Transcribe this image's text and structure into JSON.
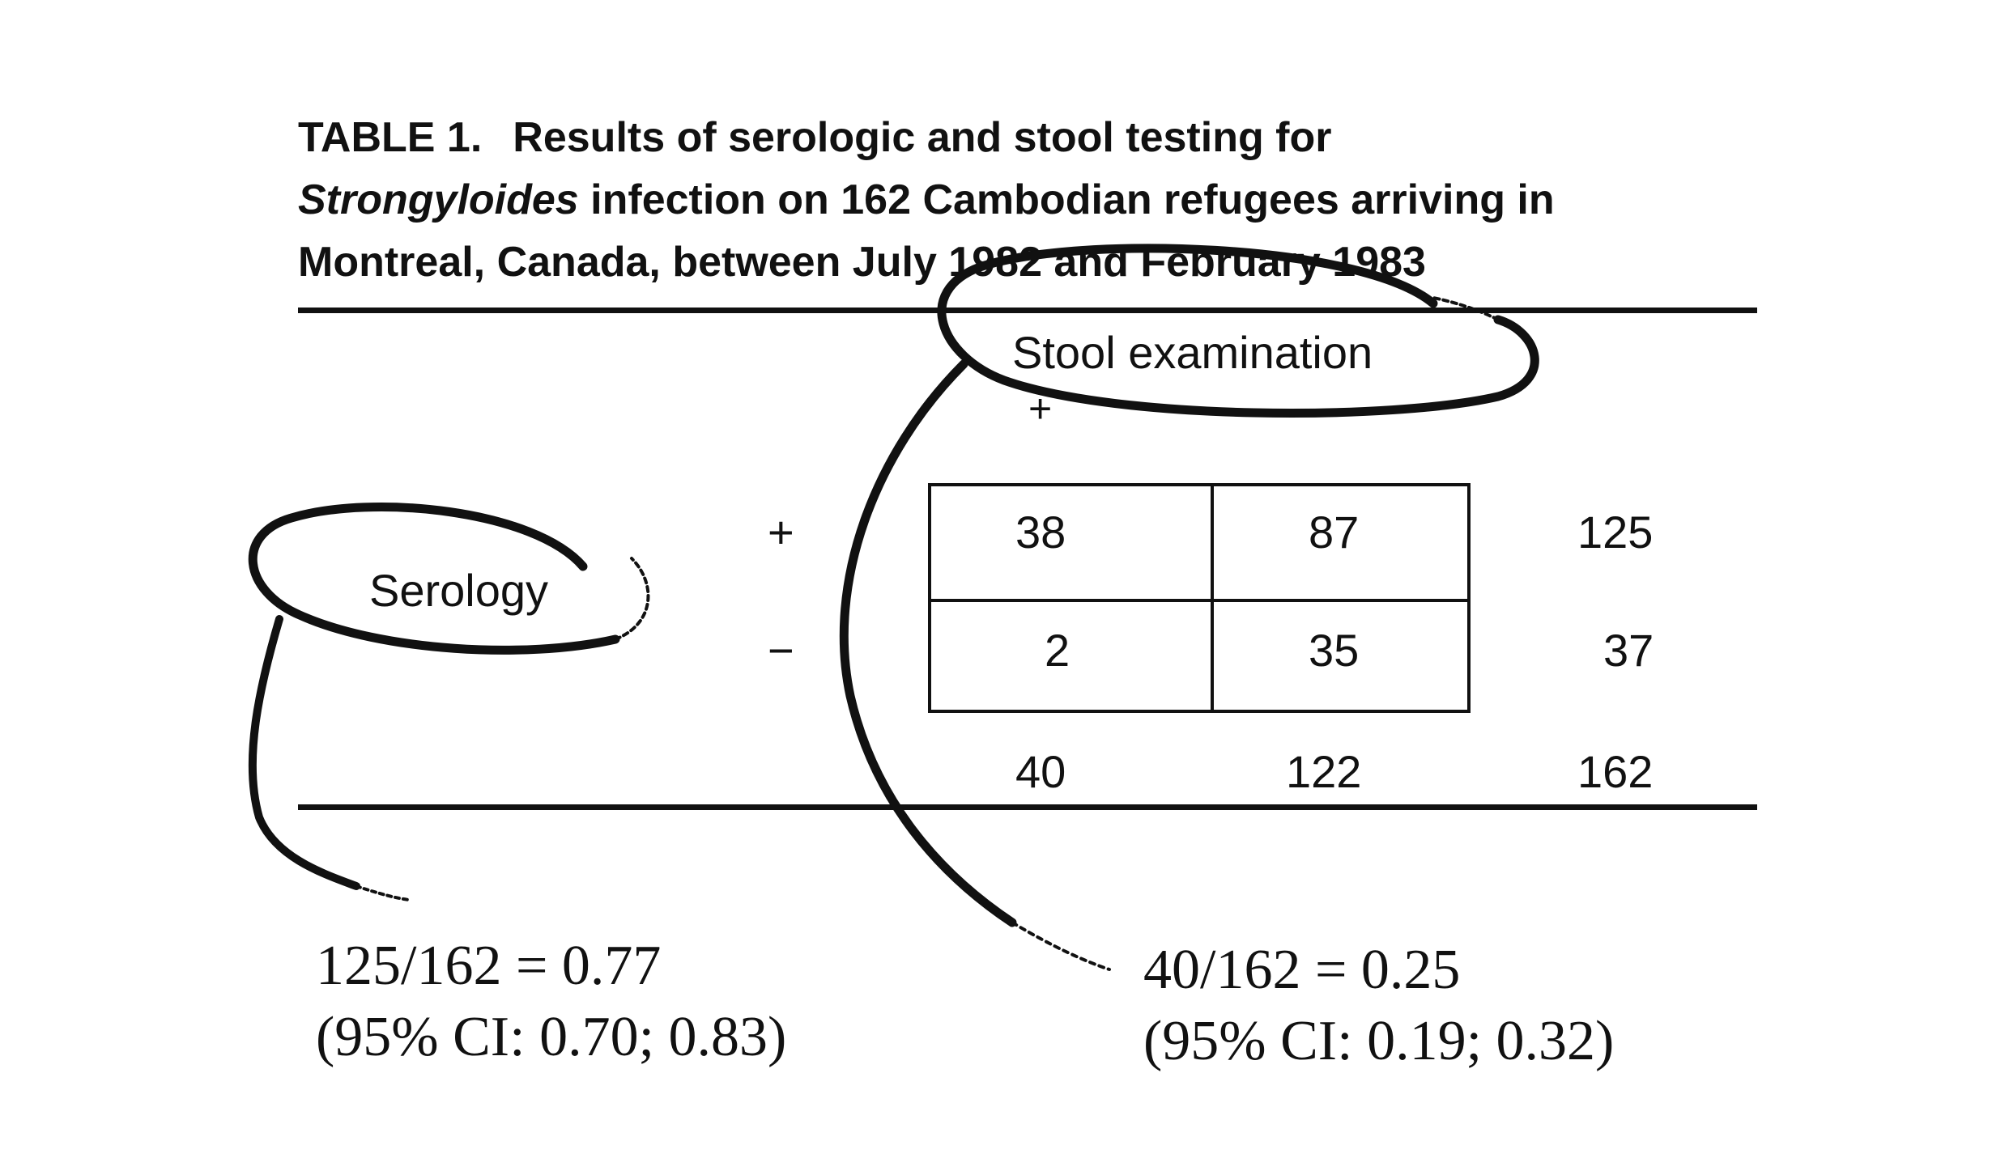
{
  "table": {
    "label": "TABLE 1.",
    "title_line1": "Results of serologic and stool testing for",
    "title_line2_italic": "Strongyloides",
    "title_line2_rest": " infection on 162 Cambodian refugees arriving in",
    "title_line3": "Montreal, Canada, between July 1982 and February 1983",
    "col_header": "Stool examination",
    "col_plus": "+",
    "row_header": "Serology",
    "row_plus": "+",
    "row_minus": "−",
    "cells": {
      "pos_pos": "38",
      "pos_neg": "87",
      "row_pos_total": "125",
      "neg_pos": "2",
      "neg_neg": "35",
      "row_neg_total": "37",
      "col_pos_total": "40",
      "col_neg_total": "122",
      "grand_total": "162"
    }
  },
  "annotations": {
    "serology": {
      "line1": "125/162 = 0.77",
      "line2": "(95% CI: 0.70; 0.83)"
    },
    "stool": {
      "line1": "40/162 = 0.25",
      "line2": "(95% CI: 0.19; 0.32)"
    }
  }
}
